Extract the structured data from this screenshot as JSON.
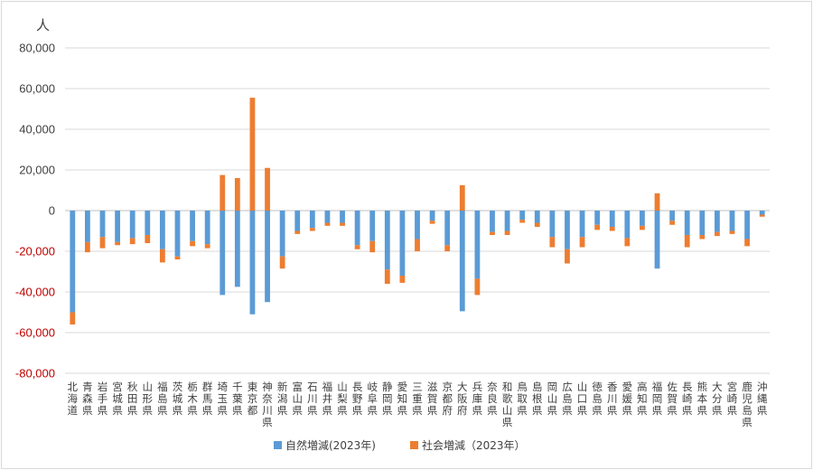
{
  "chart_data": {
    "type": "bar",
    "stacked": true,
    "unit_label": "人",
    "ylim": [
      -80000,
      80000
    ],
    "yticks": [
      {
        "value": 80000,
        "label": "80,000"
      },
      {
        "value": 60000,
        "label": "60,000"
      },
      {
        "value": 40000,
        "label": "40,000"
      },
      {
        "value": 20000,
        "label": "20,000"
      },
      {
        "value": 0,
        "label": "0"
      },
      {
        "value": -20000,
        "label": "-20,000"
      },
      {
        "value": -40000,
        "label": "-40,000"
      },
      {
        "value": -60000,
        "label": "-60,000"
      },
      {
        "value": -80000,
        "label": "-80,000"
      }
    ],
    "positive_tick_color": "#404040",
    "negative_tick_color": "#c00000",
    "grid": true,
    "legend_position": "bottom",
    "categories": [
      "北海道",
      "青森県",
      "岩手県",
      "宮城県",
      "秋田県",
      "山形県",
      "福島県",
      "茨城県",
      "栃木県",
      "群馬県",
      "埼玉県",
      "千葉県",
      "東京都",
      "神奈川県",
      "新潟県",
      "富山県",
      "石川県",
      "福井県",
      "山梨県",
      "長野県",
      "岐阜県",
      "静岡県",
      "愛知県",
      "三重県",
      "滋賀県",
      "京都府",
      "大阪府",
      "兵庫県",
      "奈良県",
      "和歌山県",
      "鳥取県",
      "島根県",
      "岡山県",
      "広島県",
      "山口県",
      "徳島県",
      "香川県",
      "愛媛県",
      "高知県",
      "福岡県",
      "佐賀県",
      "長崎県",
      "熊本県",
      "大分県",
      "宮崎県",
      "鹿児島県",
      "沖縄県"
    ],
    "series": [
      {
        "name": "自然増減(2023年)",
        "color": "#5b9bd5",
        "values": [
          -50000,
          -15500,
          -13000,
          -15500,
          -13500,
          -12000,
          -19000,
          -22500,
          -15000,
          -16500,
          -41500,
          -37500,
          -51000,
          -45000,
          -22500,
          -10000,
          -8500,
          -6000,
          -6000,
          -17000,
          -15000,
          -29000,
          -32000,
          -14000,
          -5000,
          -17000,
          -49500,
          -33500,
          -10500,
          -10000,
          -4500,
          -6000,
          -13000,
          -19000,
          -13000,
          -7000,
          -8000,
          -13500,
          -7500,
          -28500,
          -5000,
          -12000,
          -12000,
          -10500,
          -10000,
          -14000,
          -2000
        ]
      },
      {
        "name": "社会増減（2023年）",
        "color": "#ed7d31",
        "values": [
          -6000,
          -5000,
          -5500,
          -1500,
          -3000,
          -4000,
          -6500,
          -1500,
          -2500,
          -2000,
          17500,
          16000,
          55500,
          21000,
          -6000,
          -1500,
          -1500,
          -1500,
          -1500,
          -2000,
          -5500,
          -7000,
          -3500,
          -6000,
          -1500,
          -3000,
          12500,
          -8000,
          -1500,
          -2000,
          -1500,
          -2000,
          -5000,
          -7000,
          -5000,
          -2500,
          -2000,
          -4000,
          -2000,
          8500,
          -2000,
          -6000,
          -2000,
          -2000,
          -1500,
          -3500,
          -1000
        ]
      }
    ]
  }
}
